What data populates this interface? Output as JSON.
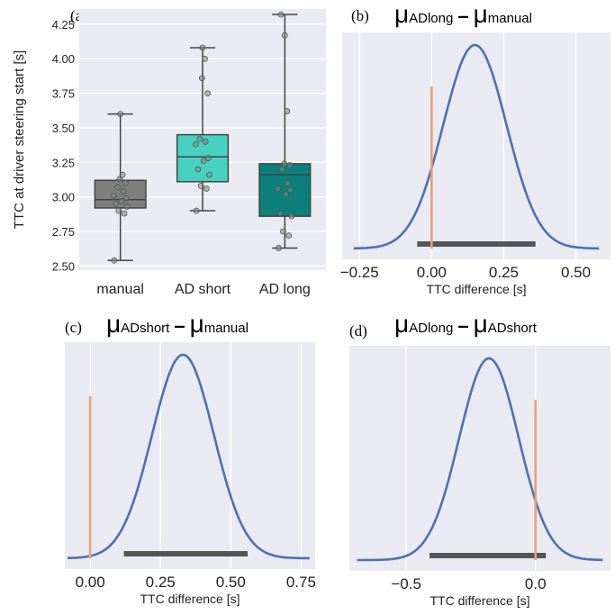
{
  "chart_data": [
    {
      "id": "a",
      "type": "box",
      "panel_label": "(a)",
      "ylabel": "TTC at driver steering start [s]",
      "ylim": [
        2.47,
        4.36
      ],
      "yticks": [
        2.5,
        2.75,
        3.0,
        3.25,
        3.5,
        3.75,
        4.0,
        4.25
      ],
      "ytick_labels": [
        "2.50",
        "2.75",
        "3.00",
        "3.25",
        "3.50",
        "3.75",
        "4.00",
        "4.25"
      ],
      "grid": true,
      "categories": [
        "manual",
        "AD short",
        "AD long"
      ],
      "boxes": [
        {
          "name": "manual",
          "color": "#7f7f7f",
          "whisker_low": 2.54,
          "q1": 2.92,
          "median": 2.98,
          "q3": 3.12,
          "whisker_high": 3.6,
          "points": [
            2.54,
            2.88,
            2.9,
            2.93,
            2.95,
            2.97,
            2.99,
            3.01,
            3.04,
            3.07,
            3.1,
            3.13,
            3.16,
            3.6
          ]
        },
        {
          "name": "AD short",
          "color": "#48d1c1",
          "whisker_low": 2.9,
          "q1": 3.11,
          "median": 3.29,
          "q3": 3.45,
          "whisker_high": 4.08,
          "points": [
            2.9,
            3.06,
            3.08,
            3.16,
            3.2,
            3.26,
            3.28,
            3.38,
            3.4,
            3.42,
            3.75,
            3.86,
            4.0,
            4.08
          ]
        },
        {
          "name": "AD long",
          "color": "#0d7f7c",
          "whisker_low": 2.63,
          "q1": 2.86,
          "median": 3.16,
          "q3": 3.24,
          "whisker_high": 4.32,
          "points": [
            2.63,
            2.72,
            2.75,
            2.86,
            2.88,
            3.02,
            3.05,
            3.06,
            3.1,
            3.2,
            3.23,
            3.24,
            3.62,
            4.17,
            4.32
          ]
        }
      ]
    },
    {
      "id": "b",
      "type": "line",
      "panel_label": "(b)",
      "title": {
        "left": "ADlong",
        "right": "manual"
      },
      "xlabel": "TTC difference [s]",
      "xlim": [
        -0.31,
        0.62
      ],
      "xticks": [
        -0.25,
        0.0,
        0.25,
        0.5
      ],
      "xtick_labels": [
        "−0.25",
        "0.00",
        "0.25",
        "0.50"
      ],
      "grid": true,
      "distribution": {
        "mean": 0.15,
        "sd": 0.11,
        "range": [
          -0.27,
          0.58
        ]
      },
      "reference_line_x": 0.0,
      "interval": [
        -0.05,
        0.36
      ],
      "colors": {
        "curve": "#4c72b0",
        "reference": "#e8a07a",
        "interval": "#555555"
      }
    },
    {
      "id": "c",
      "type": "line",
      "panel_label": "(c)",
      "title": {
        "left": "ADshort",
        "right": "manual"
      },
      "xlabel": "TTC difference [s]",
      "xlim": [
        -0.09,
        0.8
      ],
      "xticks": [
        0.0,
        0.25,
        0.5,
        0.75
      ],
      "xtick_labels": [
        "0.00",
        "0.25",
        "0.50",
        "0.75"
      ],
      "grid": true,
      "distribution": {
        "mean": 0.33,
        "sd": 0.11,
        "range": [
          -0.08,
          0.78
        ]
      },
      "reference_line_x": 0.0,
      "interval": [
        0.12,
        0.56
      ],
      "colors": {
        "curve": "#4c72b0",
        "reference": "#e8a07a",
        "interval": "#555555"
      }
    },
    {
      "id": "d",
      "type": "line",
      "panel_label": "(d)",
      "title": {
        "left": "ADlong",
        "right": "ADshort"
      },
      "xlabel": "TTC difference [s]",
      "xlim": [
        -0.72,
        0.29
      ],
      "xticks": [
        -0.5,
        0.0
      ],
      "xtick_labels": [
        "−0.5",
        "0.0"
      ],
      "grid": true,
      "distribution": {
        "mean": -0.18,
        "sd": 0.115,
        "range": [
          -0.69,
          0.26
        ]
      },
      "reference_line_x": 0.0,
      "interval": [
        -0.41,
        0.04
      ],
      "colors": {
        "curve": "#4c72b0",
        "reference": "#e8a07a",
        "interval": "#555555"
      }
    }
  ]
}
